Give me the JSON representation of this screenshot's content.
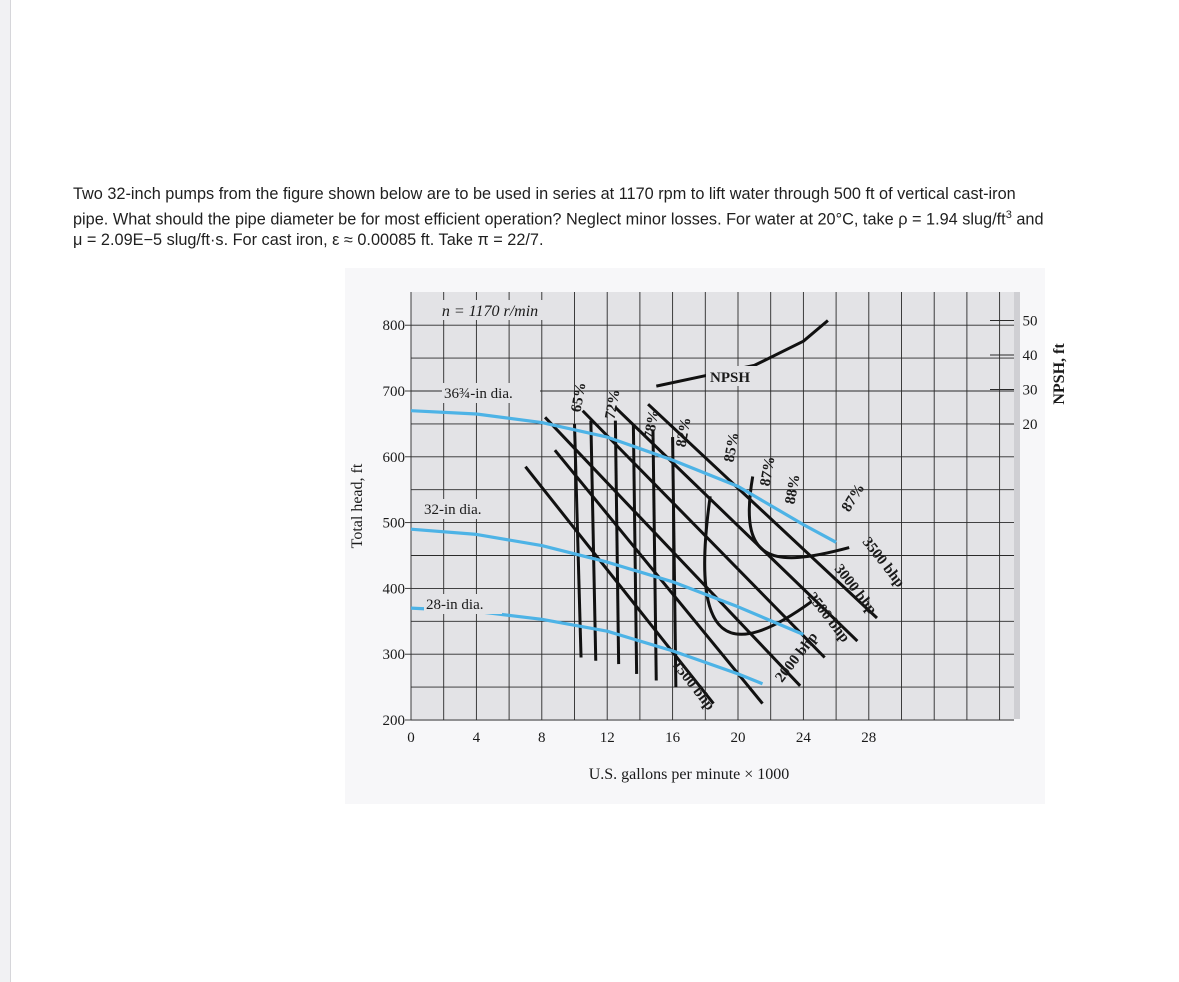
{
  "problem": {
    "line1": "Two 32-inch pumps from the figure shown below are to be used in series at 1170 rpm to lift water through 500 ft of vertical cast-iron",
    "line2": "pipe. What should the pipe diameter be for most efficient operation? Neglect minor losses. For water at 20°C, take ρ = 1.94 slug/ft",
    "line2_sup": "3",
    "line2_end": " and",
    "line3": "μ = 2.09E−5 slug/ft·s. For cast iron, ε ≈ 0.00085 ft. Take π = 22/7."
  },
  "colors": {
    "impeller_curve": "#4db3e6",
    "lines": "#111111",
    "grid": "#2a2a2a",
    "panel": "#e3e3e6"
  },
  "chart_data": {
    "type": "line",
    "title": "n = 1170 r/min",
    "xlabel": "U.S. gallons per minute × 1000",
    "ylabel": "Total head, ft",
    "y2label": "NPSH, ft",
    "xlim": [
      0,
      28
    ],
    "ylim": [
      200,
      800
    ],
    "y2lim": [
      20,
      50
    ],
    "x_ticks": [
      "0",
      "4",
      "8",
      "12",
      "16",
      "20",
      "24",
      "28"
    ],
    "y_ticks": [
      "200",
      "300",
      "400",
      "500",
      "600",
      "700",
      "800"
    ],
    "y2_ticks": [
      "20",
      "30",
      "40",
      "50"
    ],
    "grid": true,
    "head_curves": [
      {
        "name": "36¾-in dia.",
        "points": [
          [
            0,
            670
          ],
          [
            4,
            665
          ],
          [
            8,
            652
          ],
          [
            12,
            630
          ],
          [
            16,
            595
          ],
          [
            20,
            555
          ],
          [
            24,
            497
          ],
          [
            26,
            470
          ]
        ]
      },
      {
        "name": "32-in dia.",
        "points": [
          [
            0,
            490
          ],
          [
            4,
            482
          ],
          [
            8,
            465
          ],
          [
            12,
            440
          ],
          [
            16,
            410
          ],
          [
            20,
            372
          ],
          [
            24,
            330
          ]
        ]
      },
      {
        "name": "28-in dia.",
        "points": [
          [
            0,
            370
          ],
          [
            4,
            365
          ],
          [
            8,
            353
          ],
          [
            12,
            335
          ],
          [
            16,
            305
          ],
          [
            20,
            270
          ],
          [
            21.5,
            255
          ]
        ]
      }
    ],
    "npsh_curve": {
      "name": "NPSH",
      "points": [
        [
          15,
          31
        ],
        [
          18,
          34
        ],
        [
          21,
          37
        ],
        [
          24,
          44
        ],
        [
          25.5,
          50
        ]
      ]
    },
    "efficiency_labels": [
      "65%",
      "72%",
      "78%",
      "82%",
      "85%",
      "87%",
      "88%",
      "87%"
    ],
    "bhp_labels": [
      "1500 bhp",
      "2000 bhp",
      "2500 bhp",
      "3000 bhp",
      "3500 bhp"
    ]
  }
}
